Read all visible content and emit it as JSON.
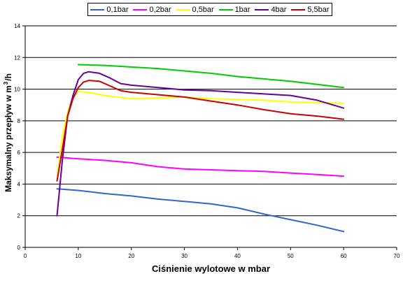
{
  "chart_data": {
    "type": "line",
    "xlabel": "Ciśnienie wylotowe w mbar",
    "ylabel_main": "Maksymalny przepływ w m",
    "ylabel_sup": "3",
    "ylabel_unit": "/h",
    "xlim": [
      0,
      70
    ],
    "ylim": [
      0,
      14
    ],
    "x_ticks": [
      0,
      10,
      20,
      30,
      40,
      50,
      60,
      70
    ],
    "y_ticks": [
      0,
      2,
      4,
      6,
      8,
      10,
      12,
      14
    ],
    "grid": "horizontal",
    "legend_position": "top",
    "series": [
      {
        "name": "0,1bar",
        "color": "#3366cc",
        "points": [
          [
            6,
            3.7
          ],
          [
            8,
            3.65
          ],
          [
            10,
            3.6
          ],
          [
            15,
            3.4
          ],
          [
            20,
            3.25
          ],
          [
            25,
            3.05
          ],
          [
            30,
            2.9
          ],
          [
            35,
            2.75
          ],
          [
            40,
            2.5
          ],
          [
            45,
            2.1
          ],
          [
            50,
            1.75
          ],
          [
            55,
            1.4
          ],
          [
            60,
            1.0
          ]
        ]
      },
      {
        "name": "0,2bar",
        "color": "#ff00ff",
        "points": [
          [
            6,
            5.7
          ],
          [
            10,
            5.6
          ],
          [
            15,
            5.5
          ],
          [
            20,
            5.35
          ],
          [
            25,
            5.1
          ],
          [
            30,
            4.95
          ],
          [
            35,
            4.9
          ],
          [
            40,
            4.85
          ],
          [
            45,
            4.8
          ],
          [
            50,
            4.7
          ],
          [
            55,
            4.6
          ],
          [
            60,
            4.5
          ]
        ]
      },
      {
        "name": "0,5bar",
        "color": "#ffff00",
        "points": [
          [
            6,
            4.5
          ],
          [
            7,
            7.0
          ],
          [
            8,
            8.6
          ],
          [
            9,
            9.5
          ],
          [
            10,
            9.85
          ],
          [
            12,
            9.8
          ],
          [
            15,
            9.6
          ],
          [
            20,
            9.4
          ],
          [
            22,
            9.4
          ],
          [
            25,
            9.45
          ],
          [
            30,
            9.5
          ],
          [
            35,
            9.4
          ],
          [
            40,
            9.35
          ],
          [
            45,
            9.3
          ],
          [
            50,
            9.2
          ],
          [
            55,
            9.15
          ],
          [
            60,
            9.1
          ]
        ]
      },
      {
        "name": "1bar",
        "color": "#00cc00",
        "points": [
          [
            10,
            11.55
          ],
          [
            15,
            11.5
          ],
          [
            20,
            11.4
          ],
          [
            25,
            11.3
          ],
          [
            30,
            11.15
          ],
          [
            35,
            11.0
          ],
          [
            40,
            10.8
          ],
          [
            45,
            10.65
          ],
          [
            50,
            10.5
          ],
          [
            55,
            10.3
          ],
          [
            60,
            10.1
          ]
        ]
      },
      {
        "name": "4bar",
        "color": "#660099",
        "points": [
          [
            6,
            2.0
          ],
          [
            7,
            5.5
          ],
          [
            8,
            8.3
          ],
          [
            9,
            9.6
          ],
          [
            10,
            10.6
          ],
          [
            11,
            11.0
          ],
          [
            12,
            11.1
          ],
          [
            14,
            11.0
          ],
          [
            16,
            10.7
          ],
          [
            18,
            10.35
          ],
          [
            20,
            10.25
          ],
          [
            25,
            10.1
          ],
          [
            30,
            9.95
          ],
          [
            35,
            9.9
          ],
          [
            40,
            9.8
          ],
          [
            45,
            9.7
          ],
          [
            50,
            9.6
          ],
          [
            55,
            9.3
          ],
          [
            60,
            8.8
          ]
        ]
      },
      {
        "name": "5,5bar",
        "color": "#cc0000",
        "points": [
          [
            6,
            4.2
          ],
          [
            7,
            6.2
          ],
          [
            8,
            8.3
          ],
          [
            9,
            9.4
          ],
          [
            10,
            10.1
          ],
          [
            11,
            10.45
          ],
          [
            12,
            10.55
          ],
          [
            14,
            10.5
          ],
          [
            16,
            10.2
          ],
          [
            18,
            9.9
          ],
          [
            20,
            9.8
          ],
          [
            25,
            9.65
          ],
          [
            30,
            9.5
          ],
          [
            35,
            9.25
          ],
          [
            40,
            9.0
          ],
          [
            45,
            8.7
          ],
          [
            50,
            8.45
          ],
          [
            55,
            8.3
          ],
          [
            60,
            8.1
          ]
        ]
      }
    ]
  }
}
